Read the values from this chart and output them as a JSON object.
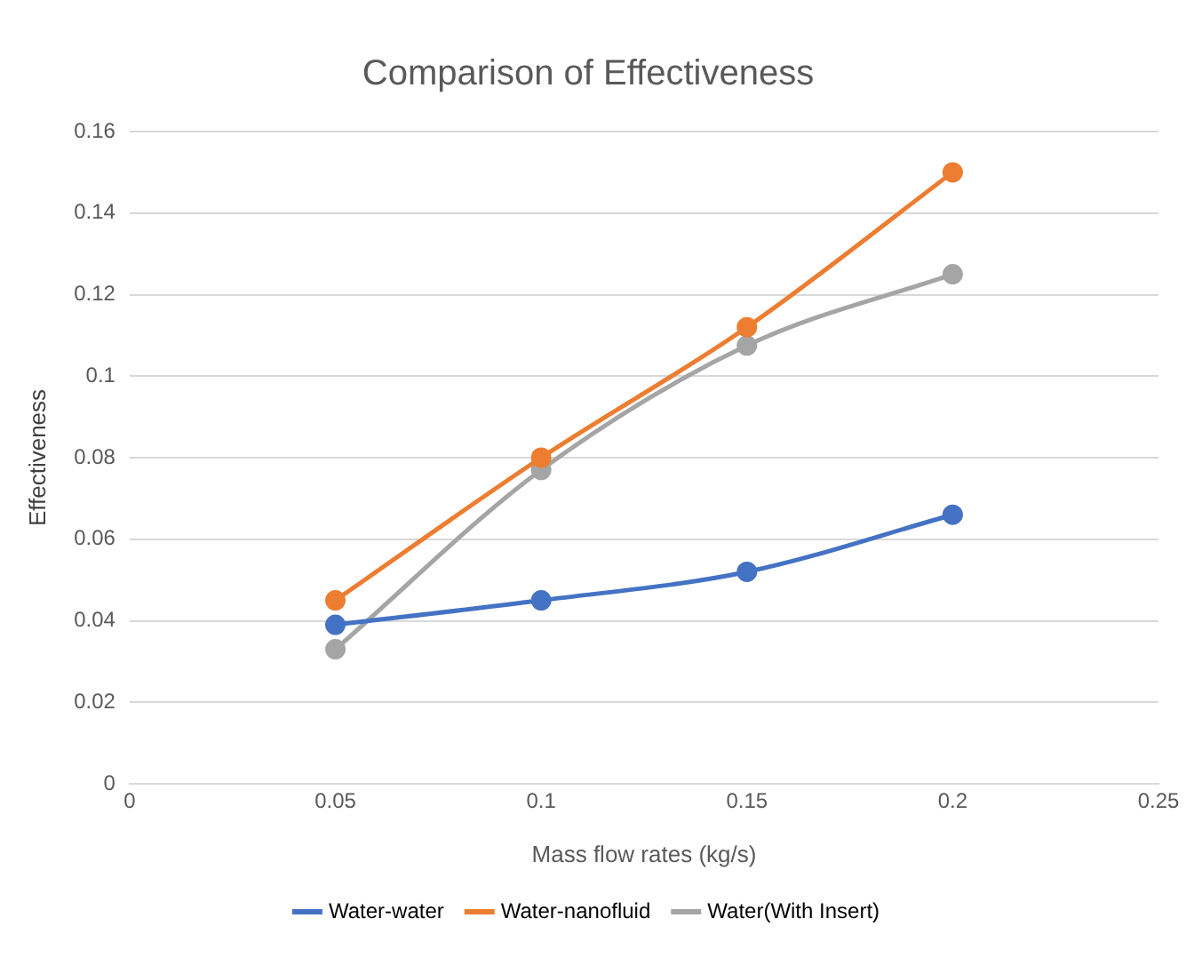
{
  "chart_data": {
    "type": "line",
    "title": "Comparison of Effectiveness",
    "xlabel": "Mass flow rates (kg/s)",
    "ylabel": "Effectiveness",
    "x": [
      0.05,
      0.1,
      0.15,
      0.2
    ],
    "series": [
      {
        "name": "Water-water",
        "color": "#4472c4",
        "values": [
          0.039,
          0.045,
          0.052,
          0.066
        ]
      },
      {
        "name": "Water-nanofluid",
        "color": "#ed7d31",
        "values": [
          0.045,
          0.08,
          0.112,
          0.15
        ]
      },
      {
        "name": "Water(With Insert)",
        "color": "#a5a5a5",
        "values": [
          0.033,
          0.077,
          0.1075,
          0.125
        ]
      }
    ],
    "xlim": [
      0,
      0.25
    ],
    "xticks": [
      0,
      0.05,
      0.1,
      0.15,
      0.2,
      0.25
    ],
    "ylim": [
      0,
      0.16
    ],
    "yticks": [
      0,
      0.02,
      0.04,
      0.06,
      0.08,
      0.1,
      0.12,
      0.14,
      0.16
    ],
    "grid": "y",
    "legend": "bottom",
    "marker": "circle",
    "line_style": "solid"
  }
}
